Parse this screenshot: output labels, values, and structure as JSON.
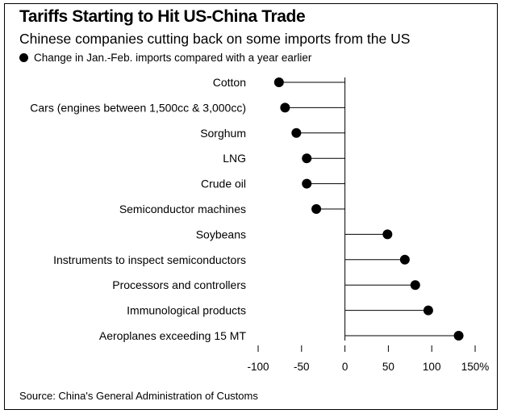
{
  "chart_data": {
    "type": "lollipop",
    "title": "Tariffs Starting to Hit US-China Trade",
    "subtitle": "Chinese companies cutting back on some imports from the US",
    "legend": "Change in Jan.-Feb. imports compared with a year earlier",
    "source": "Source: China's General Administration of Customs",
    "categories": [
      "Cotton",
      "Cars (engines between 1,500cc & 3,000cc)",
      "Sorghum",
      "LNG",
      "Crude oil",
      "Semiconductor machines",
      "Soybeans",
      "Instruments to inspect semiconductors",
      "Processors and controllers",
      "Immunological products",
      "Aeroplanes exceeding 15 MT"
    ],
    "values": [
      -76,
      -69,
      -56,
      -44,
      -44,
      -33,
      49,
      69,
      81,
      96,
      131
    ],
    "xlim": [
      -100,
      150
    ],
    "xticks": [
      {
        "value": -100,
        "label": "-100"
      },
      {
        "value": -50,
        "label": "-50"
      },
      {
        "value": 0,
        "label": "0"
      },
      {
        "value": 50,
        "label": "50"
      },
      {
        "value": 100,
        "label": "100"
      },
      {
        "value": 150,
        "label": "150%"
      }
    ],
    "colors": {
      "marker": "#000000",
      "stem": "#000000"
    },
    "grid": false
  }
}
